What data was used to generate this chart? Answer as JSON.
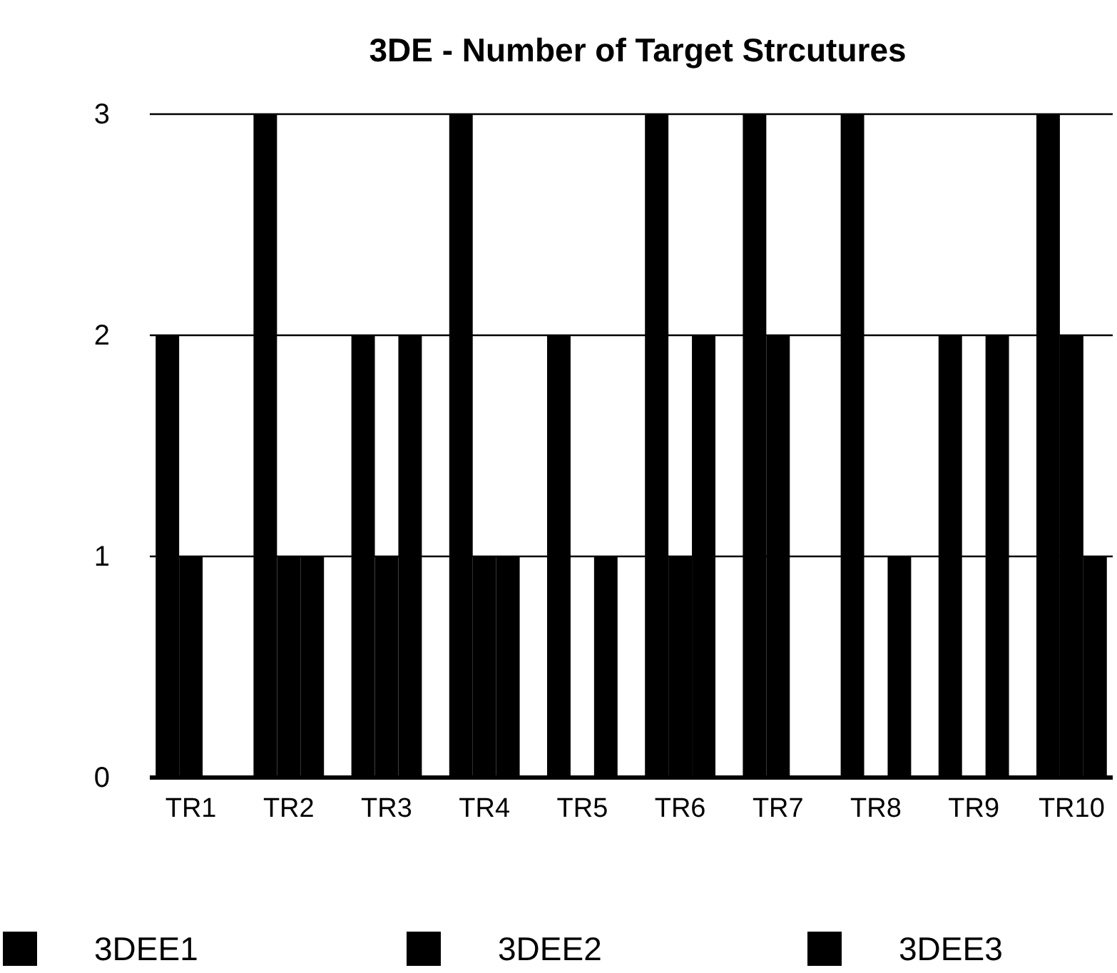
{
  "chart_data": {
    "type": "bar",
    "title": "3DE - Number of Target Strcutures",
    "categories": [
      "TR1",
      "TR2",
      "TR3",
      "TR4",
      "TR5",
      "TR6",
      "TR7",
      "TR8",
      "TR9",
      "TR10"
    ],
    "series": [
      {
        "name": "3DEE1",
        "color": "#000000",
        "values": [
          2,
          3,
          2,
          3,
          2,
          3,
          3,
          3,
          2,
          3
        ]
      },
      {
        "name": "3DEE2",
        "color": "#000000",
        "values": [
          1,
          1,
          1,
          1,
          0,
          1,
          2,
          0,
          0,
          2
        ]
      },
      {
        "name": "3DEE3",
        "color": "#000000",
        "values": [
          0,
          1,
          2,
          1,
          1,
          2,
          0,
          1,
          2,
          1
        ]
      }
    ],
    "ylim": [
      0,
      3
    ],
    "yticks": [
      0,
      1,
      2,
      3
    ],
    "grid": "y",
    "legend": "bottom"
  }
}
